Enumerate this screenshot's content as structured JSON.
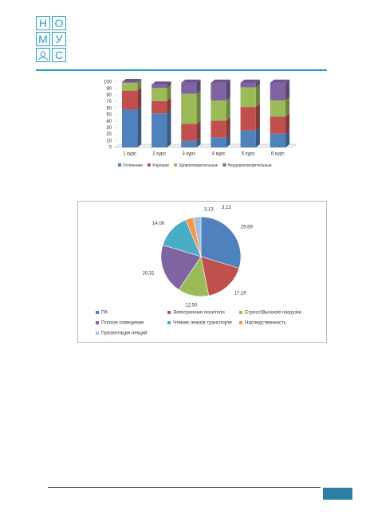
{
  "logo": {
    "letters": [
      "Н",
      "О",
      "М",
      "У",
      "С"
    ]
  },
  "chart_data": [
    {
      "type": "bar",
      "stacked": true,
      "categories": [
        "1 курс",
        "2 курс",
        "3 курс",
        "4 курс",
        "5 курс",
        "6 курс"
      ],
      "series": [
        {
          "name": "Отличники",
          "color": "#4f81bd",
          "values": [
            58,
            52,
            10,
            15,
            26,
            21
          ]
        },
        {
          "name": "Хорошие",
          "color": "#c0504d",
          "values": [
            29,
            19,
            26,
            26,
            36,
            26
          ]
        },
        {
          "name": "Удовлетворительные",
          "color": "#9bbb59",
          "values": [
            12,
            20,
            46,
            31,
            30,
            25
          ]
        },
        {
          "name": "Неудовлетворительные",
          "color": "#8064a2",
          "values": [
            1,
            5,
            17,
            27,
            7,
            27
          ]
        }
      ],
      "ylim": [
        0,
        100
      ],
      "yticks": [
        0,
        10,
        20,
        30,
        40,
        50,
        60,
        70,
        80,
        90,
        100
      ]
    },
    {
      "type": "pie",
      "series": [
        {
          "name": "ПК",
          "color": "#4f81bd"
        },
        {
          "name": "Электронные носители",
          "color": "#c0504d"
        },
        {
          "name": "Стресс\\Высокие нагрузки",
          "color": "#9bbb59"
        },
        {
          "name": "Плохое освещение",
          "color": "#8064a2"
        },
        {
          "name": "Чтение лежа/в транспорте",
          "color": "#4bacc6"
        },
        {
          "name": "Наследственность",
          "color": "#f79646"
        },
        {
          "name": "Презентация лекций",
          "color": "#a5c0e0"
        }
      ],
      "values": [
        29.69,
        17.19,
        12.5,
        20.31,
        14.06,
        3.13,
        3.13
      ],
      "value_labels": [
        "29,69",
        "17,19",
        "12,50",
        "20,31",
        "14,06",
        "3,13",
        "3,13"
      ]
    }
  ]
}
